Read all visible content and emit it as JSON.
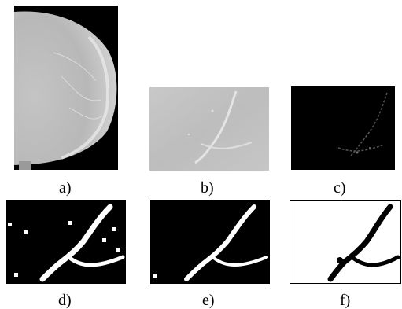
{
  "figure": {
    "panels": [
      {
        "id": "a",
        "caption": "a)",
        "content": "full mammogram image"
      },
      {
        "id": "b",
        "caption": "b)",
        "content": "cropped region of interest"
      },
      {
        "id": "c",
        "caption": "c)",
        "content": "filtered region"
      },
      {
        "id": "d",
        "caption": "d)",
        "content": "binary segmentation"
      },
      {
        "id": "e",
        "caption": "e)",
        "content": "cleaned binary segmentation"
      },
      {
        "id": "f",
        "caption": "f)",
        "content": "inverted final segmentation"
      }
    ]
  },
  "colors": {
    "background": "#ffffff",
    "mammogram_dark": "#000000",
    "tissue_light": "#d6d6d6",
    "segment_white": "#ffffff",
    "segment_black": "#000000"
  }
}
